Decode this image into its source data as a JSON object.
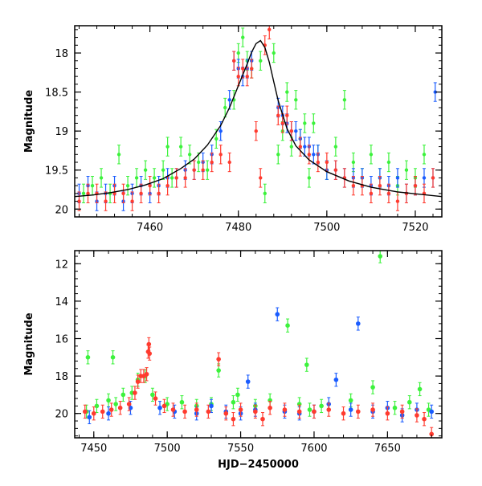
{
  "chart_data": [
    {
      "type": "scatter",
      "title": "",
      "xlabel": "",
      "ylabel": "Magnitude",
      "xlim": [
        7443,
        7526
      ],
      "ylim": [
        20.1,
        17.65
      ],
      "y_inverted": true,
      "grid": false,
      "x_ticks": [
        7460,
        7480,
        7500,
        7520
      ],
      "y_ticks": [
        18,
        18.5,
        19,
        19.5,
        20
      ],
      "x_tick_labels": [
        "7460",
        "7480",
        "7500",
        "7520"
      ],
      "y_tick_labels": [
        "18",
        "18.5",
        "19",
        "19.5",
        "20"
      ],
      "series": [
        {
          "color": "#3cf23c",
          "points": [
            [
              7445,
              19.8
            ],
            [
              7447,
              19.7
            ],
            [
              7449,
              19.6
            ],
            [
              7451,
              19.8
            ],
            [
              7453,
              19.3
            ],
            [
              7455,
              19.7
            ],
            [
              7457,
              19.6
            ],
            [
              7459,
              19.5
            ],
            [
              7461,
              19.6
            ],
            [
              7463,
              19.5
            ],
            [
              7465,
              19.6
            ],
            [
              7467,
              19.2
            ],
            [
              7469,
              19.3
            ],
            [
              7471,
              19.4
            ],
            [
              7473,
              19.5
            ],
            [
              7475,
              19.1
            ],
            [
              7477,
              18.7
            ],
            [
              7479,
              18.6
            ],
            [
              7480,
              18.0
            ],
            [
              7481,
              17.8
            ],
            [
              7482,
              18.1
            ],
            [
              7483,
              18.2
            ],
            [
              7485,
              18.1
            ],
            [
              7488,
              18.0
            ],
            [
              7489,
              19.3
            ],
            [
              7490,
              19.0
            ],
            [
              7491,
              18.5
            ],
            [
              7492,
              19.2
            ],
            [
              7493,
              18.6
            ],
            [
              7494,
              19.1
            ],
            [
              7495,
              18.9
            ],
            [
              7496,
              19.6
            ],
            [
              7497,
              18.9
            ],
            [
              7498,
              19.3
            ],
            [
              7500,
              19.5
            ],
            [
              7502,
              19.2
            ],
            [
              7504,
              18.6
            ],
            [
              7506,
              19.4
            ],
            [
              7508,
              19.6
            ],
            [
              7510,
              19.3
            ],
            [
              7512,
              19.6
            ],
            [
              7514,
              19.4
            ],
            [
              7516,
              19.7
            ],
            [
              7518,
              19.5
            ],
            [
              7520,
              19.6
            ],
            [
              7522,
              19.3
            ],
            [
              7486,
              19.8
            ],
            [
              7464,
              19.2
            ]
          ]
        },
        {
          "color": "#1a5cff",
          "points": [
            [
              7444,
              19.8
            ],
            [
              7446,
              19.7
            ],
            [
              7448,
              19.9
            ],
            [
              7450,
              19.8
            ],
            [
              7452,
              19.7
            ],
            [
              7454,
              19.9
            ],
            [
              7456,
              19.8
            ],
            [
              7458,
              19.7
            ],
            [
              7460,
              19.8
            ],
            [
              7462,
              19.7
            ],
            [
              7464,
              19.6
            ],
            [
              7466,
              19.6
            ],
            [
              7468,
              19.5
            ],
            [
              7470,
              19.5
            ],
            [
              7472,
              19.4
            ],
            [
              7474,
              19.3
            ],
            [
              7476,
              19.0
            ],
            [
              7478,
              18.6
            ],
            [
              7479,
              18.1
            ],
            [
              7480,
              18.2
            ],
            [
              7481,
              18.3
            ],
            [
              7482,
              18.2
            ],
            [
              7483,
              18.1
            ],
            [
              7489,
              18.7
            ],
            [
              7490,
              18.8
            ],
            [
              7491,
              18.9
            ],
            [
              7492,
              19.0
            ],
            [
              7493,
              19.0
            ],
            [
              7494,
              19.1
            ],
            [
              7495,
              19.2
            ],
            [
              7496,
              19.2
            ],
            [
              7497,
              19.3
            ],
            [
              7498,
              19.3
            ],
            [
              7500,
              19.5
            ],
            [
              7502,
              19.5
            ],
            [
              7504,
              19.6
            ],
            [
              7506,
              19.6
            ],
            [
              7508,
              19.6
            ],
            [
              7510,
              19.7
            ],
            [
              7512,
              19.6
            ],
            [
              7514,
              19.7
            ],
            [
              7516,
              19.6
            ],
            [
              7518,
              19.8
            ],
            [
              7520,
              19.7
            ],
            [
              7522,
              19.6
            ],
            [
              7524,
              19.6
            ],
            [
              7524.5,
              18.5
            ]
          ]
        },
        {
          "color": "#ff3b2f",
          "points": [
            [
              7444,
              19.9
            ],
            [
              7446,
              19.8
            ],
            [
              7448,
              19.8
            ],
            [
              7450,
              19.9
            ],
            [
              7452,
              19.8
            ],
            [
              7454,
              19.8
            ],
            [
              7456,
              19.9
            ],
            [
              7458,
              19.8
            ],
            [
              7460,
              19.7
            ],
            [
              7462,
              19.8
            ],
            [
              7464,
              19.7
            ],
            [
              7466,
              19.6
            ],
            [
              7468,
              19.6
            ],
            [
              7470,
              19.5
            ],
            [
              7472,
              19.5
            ],
            [
              7474,
              19.4
            ],
            [
              7476,
              19.3
            ],
            [
              7478,
              19.4
            ],
            [
              7479,
              18.1
            ],
            [
              7480,
              18.3
            ],
            [
              7481,
              18.2
            ],
            [
              7482,
              18.3
            ],
            [
              7483,
              18.2
            ],
            [
              7484,
              19.0
            ],
            [
              7485,
              19.6
            ],
            [
              7486,
              17.9
            ],
            [
              7487,
              17.7
            ],
            [
              7489,
              18.8
            ],
            [
              7490,
              18.9
            ],
            [
              7491,
              18.8
            ],
            [
              7492,
              19.0
            ],
            [
              7494,
              19.2
            ],
            [
              7496,
              19.3
            ],
            [
              7498,
              19.4
            ],
            [
              7500,
              19.4
            ],
            [
              7502,
              19.5
            ],
            [
              7504,
              19.6
            ],
            [
              7506,
              19.7
            ],
            [
              7508,
              19.7
            ],
            [
              7510,
              19.8
            ],
            [
              7512,
              19.7
            ],
            [
              7514,
              19.8
            ],
            [
              7516,
              19.9
            ],
            [
              7518,
              19.8
            ],
            [
              7520,
              19.7
            ],
            [
              7522,
              19.8
            ],
            [
              7524,
              19.6
            ]
          ]
        }
      ],
      "model_curve": [
        [
          7443,
          19.84
        ],
        [
          7447,
          19.82
        ],
        [
          7451,
          19.79
        ],
        [
          7455,
          19.75
        ],
        [
          7459,
          19.69
        ],
        [
          7463,
          19.61
        ],
        [
          7467,
          19.48
        ],
        [
          7470,
          19.36
        ],
        [
          7473,
          19.18
        ],
        [
          7476,
          18.93
        ],
        [
          7478,
          18.7
        ],
        [
          7480,
          18.42
        ],
        [
          7482,
          18.14
        ],
        [
          7483,
          17.99
        ],
        [
          7484,
          17.88
        ],
        [
          7485,
          17.84
        ],
        [
          7486,
          17.93
        ],
        [
          7487,
          18.12
        ],
        [
          7488,
          18.37
        ],
        [
          7489,
          18.61
        ],
        [
          7491,
          18.97
        ],
        [
          7493,
          19.19
        ],
        [
          7496,
          19.37
        ],
        [
          7500,
          19.52
        ],
        [
          7505,
          19.64
        ],
        [
          7510,
          19.72
        ],
        [
          7516,
          19.78
        ],
        [
          7526,
          19.84
        ]
      ]
    },
    {
      "type": "scatter",
      "title": "",
      "xlabel": "HJD−2450000",
      "ylabel": "Magnitude",
      "xlim": [
        7437,
        7687
      ],
      "ylim": [
        21.3,
        11.3
      ],
      "y_inverted": true,
      "grid": false,
      "x_ticks": [
        7450,
        7500,
        7550,
        7600,
        7650
      ],
      "y_ticks": [
        12,
        14,
        16,
        18,
        20
      ],
      "x_tick_labels": [
        "7450",
        "7500",
        "7550",
        "7600",
        "7650"
      ],
      "y_tick_labels": [
        "12",
        "14",
        "16",
        "18",
        "20"
      ],
      "series": [
        {
          "color": "#3cf23c",
          "points": [
            [
              7445,
              19.9
            ],
            [
              7452,
              19.6
            ],
            [
              7460,
              19.3
            ],
            [
              7465,
              19.5
            ],
            [
              7476,
              18.9
            ],
            [
              7480,
              18.2
            ],
            [
              7485,
              18.0
            ],
            [
              7490,
              19.0
            ],
            [
              7500,
              19.5
            ],
            [
              7510,
              19.4
            ],
            [
              7520,
              19.6
            ],
            [
              7530,
              19.5
            ],
            [
              7535,
              17.7
            ],
            [
              7545,
              19.4
            ],
            [
              7560,
              19.6
            ],
            [
              7570,
              19.3
            ],
            [
              7582,
              15.3
            ],
            [
              7590,
              19.5
            ],
            [
              7595,
              17.4
            ],
            [
              7605,
              19.6
            ],
            [
              7625,
              19.3
            ],
            [
              7645,
              11.6
            ],
            [
              7655,
              19.7
            ],
            [
              7665,
              19.4
            ],
            [
              7672,
              18.7
            ],
            [
              7678,
              19.8
            ],
            [
              7446,
              17.0
            ],
            [
              7463,
              17.0
            ],
            [
              7470,
              19.0
            ],
            [
              7548,
              19.0
            ],
            [
              7597,
              19.8
            ],
            [
              7640,
              18.6
            ]
          ]
        },
        {
          "color": "#1a5cff",
          "points": [
            [
              7447,
              20.2
            ],
            [
              7460,
              20.0
            ],
            [
              7475,
              19.7
            ],
            [
              7495,
              19.7
            ],
            [
              7505,
              19.9
            ],
            [
              7520,
              20.0
            ],
            [
              7530,
              19.6
            ],
            [
              7540,
              19.9
            ],
            [
              7550,
              20.0
            ],
            [
              7560,
              19.8
            ],
            [
              7575,
              14.7
            ],
            [
              7580,
              19.9
            ],
            [
              7590,
              20.0
            ],
            [
              7600,
              19.9
            ],
            [
              7615,
              18.2
            ],
            [
              7625,
              19.8
            ],
            [
              7630,
              15.2
            ],
            [
              7640,
              19.9
            ],
            [
              7650,
              19.7
            ],
            [
              7660,
              20.1
            ],
            [
              7670,
              19.8
            ],
            [
              7680,
              19.9
            ],
            [
              7555,
              18.3
            ],
            [
              7610,
              19.5
            ]
          ]
        },
        {
          "color": "#ff3b2f",
          "points": [
            [
              7444,
              19.9
            ],
            [
              7450,
              20.0
            ],
            [
              7456,
              19.9
            ],
            [
              7462,
              19.8
            ],
            [
              7468,
              19.7
            ],
            [
              7474,
              19.5
            ],
            [
              7478,
              18.9
            ],
            [
              7480,
              18.3
            ],
            [
              7482,
              18.0
            ],
            [
              7484,
              18.0
            ],
            [
              7486,
              17.9
            ],
            [
              7487,
              16.7
            ],
            [
              7487.5,
              16.3
            ],
            [
              7488,
              16.8
            ],
            [
              7492,
              19.2
            ],
            [
              7498,
              19.6
            ],
            [
              7504,
              19.8
            ],
            [
              7512,
              19.9
            ],
            [
              7520,
              19.8
            ],
            [
              7528,
              19.9
            ],
            [
              7535,
              17.1
            ],
            [
              7540,
              20.0
            ],
            [
              7550,
              19.8
            ],
            [
              7560,
              19.9
            ],
            [
              7570,
              19.7
            ],
            [
              7580,
              19.8
            ],
            [
              7590,
              19.9
            ],
            [
              7600,
              19.9
            ],
            [
              7610,
              19.8
            ],
            [
              7620,
              20.0
            ],
            [
              7630,
              19.9
            ],
            [
              7640,
              19.8
            ],
            [
              7650,
              20.0
            ],
            [
              7660,
              19.9
            ],
            [
              7670,
              20.1
            ],
            [
              7675,
              20.3
            ],
            [
              7680,
              21.1
            ],
            [
              7565,
              20.3
            ],
            [
              7545,
              20.3
            ]
          ]
        }
      ]
    }
  ]
}
